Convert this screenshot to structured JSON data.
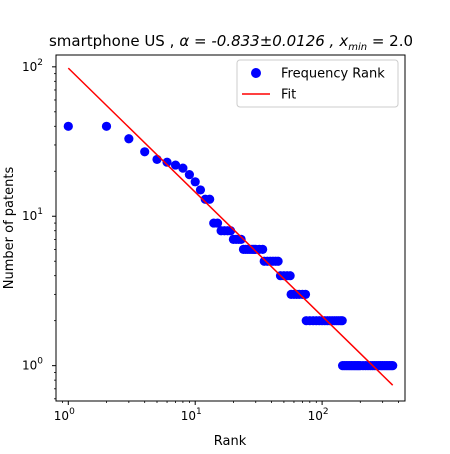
{
  "chart_data": {
    "type": "scatter",
    "title_prefix": "smartphone US ,",
    "title_alpha": "α = -0.833±0.0126 ,",
    "title_xmin_base": "x",
    "title_xmin_sub": "min",
    "title_xmin_val": " = 2.0",
    "xlabel": "Rank",
    "ylabel": "Number of patents",
    "xscale": "log",
    "yscale": "log",
    "xlim": [
      0.8,
      450
    ],
    "ylim": [
      0.58,
      120
    ],
    "x_ticks": [
      {
        "value": 1,
        "base": "10",
        "exp": "0"
      },
      {
        "value": 10,
        "base": "10",
        "exp": "1"
      },
      {
        "value": 100,
        "base": "10",
        "exp": "2"
      }
    ],
    "y_ticks": [
      {
        "value": 1,
        "base": "10",
        "exp": "0"
      },
      {
        "value": 10,
        "base": "10",
        "exp": "1"
      },
      {
        "value": 100,
        "base": "10",
        "exp": "2"
      }
    ],
    "legend_position": "top-right",
    "grid": false,
    "series": [
      {
        "name": "Frequency Rank",
        "kind": "scatter",
        "color": "#0000ff",
        "points": [
          [
            1,
            40
          ],
          [
            2,
            40
          ],
          [
            3,
            33
          ],
          [
            4,
            27
          ],
          [
            5,
            24
          ],
          [
            6,
            23
          ],
          [
            7,
            22
          ],
          [
            8,
            21
          ],
          [
            9,
            19
          ],
          [
            10,
            17
          ],
          [
            11,
            15
          ],
          [
            12,
            13
          ],
          [
            13,
            13
          ],
          [
            14,
            9
          ],
          [
            15,
            9
          ],
          [
            16,
            8
          ],
          [
            17,
            8
          ],
          [
            18,
            8
          ],
          [
            19,
            8
          ],
          [
            20,
            7
          ],
          [
            21,
            7
          ],
          [
            22,
            7
          ],
          [
            23,
            7
          ],
          [
            24,
            6
          ],
          [
            25,
            6
          ],
          [
            26,
            6
          ],
          [
            27,
            6
          ],
          [
            28,
            6
          ],
          [
            29,
            6
          ],
          [
            30,
            6
          ],
          [
            32,
            6
          ],
          [
            34,
            6
          ],
          [
            35,
            5
          ],
          [
            37,
            5
          ],
          [
            39,
            5
          ],
          [
            41,
            5
          ],
          [
            43,
            5
          ],
          [
            45,
            5
          ],
          [
            47,
            4
          ],
          [
            50,
            4
          ],
          [
            53,
            4
          ],
          [
            56,
            4
          ],
          [
            57,
            3
          ],
          [
            60,
            3
          ],
          [
            63,
            3
          ],
          [
            66,
            3
          ],
          [
            70,
            3
          ],
          [
            74,
            3
          ],
          [
            75,
            2
          ],
          [
            80,
            2
          ],
          [
            85,
            2
          ],
          [
            90,
            2
          ],
          [
            95,
            2
          ],
          [
            100,
            2
          ],
          [
            105,
            2
          ],
          [
            110,
            2
          ],
          [
            115,
            2
          ],
          [
            120,
            2
          ],
          [
            125,
            2
          ],
          [
            130,
            2
          ],
          [
            135,
            2
          ],
          [
            140,
            2
          ],
          [
            144,
            2
          ],
          [
            145,
            1
          ],
          [
            150,
            1
          ],
          [
            155,
            1
          ],
          [
            160,
            1
          ],
          [
            165,
            1
          ],
          [
            170,
            1
          ],
          [
            175,
            1
          ],
          [
            180,
            1
          ],
          [
            185,
            1
          ],
          [
            190,
            1
          ],
          [
            195,
            1
          ],
          [
            200,
            1
          ],
          [
            210,
            1
          ],
          [
            220,
            1
          ],
          [
            230,
            1
          ],
          [
            240,
            1
          ],
          [
            250,
            1
          ],
          [
            260,
            1
          ],
          [
            270,
            1
          ],
          [
            280,
            1
          ],
          [
            290,
            1
          ],
          [
            300,
            1
          ],
          [
            310,
            1
          ],
          [
            320,
            1
          ],
          [
            330,
            1
          ],
          [
            340,
            1
          ],
          [
            350,
            1
          ],
          [
            360,
            1
          ]
        ]
      },
      {
        "name": "Fit",
        "kind": "line",
        "color": "#ff0000",
        "points": [
          [
            1,
            98
          ],
          [
            360,
            0.74
          ]
        ]
      }
    ]
  }
}
